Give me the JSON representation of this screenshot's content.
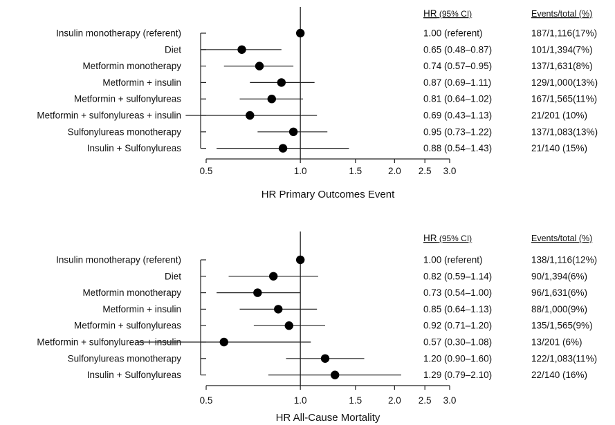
{
  "chart_data": [
    {
      "type": "forest",
      "xlabel": "HR Primary Outcomes Event",
      "x_scale": "log",
      "xlim": [
        0.5,
        3.0
      ],
      "x_ticks": [
        "0.5",
        "1.0",
        "1.5",
        "2.0",
        "2.5",
        "3.0"
      ],
      "x_tick_values": [
        0.5,
        1.0,
        1.5,
        2.0,
        2.5,
        3.0
      ],
      "reference_line": 1.0,
      "col_hr_header": "HR",
      "col_ci_header": "(95% CI)",
      "col_events_header": "Events/total (%)",
      "rows": [
        {
          "label": "Insulin monotherapy (referent)",
          "hr": 1.0,
          "lo": 1.0,
          "hi": 1.0,
          "hr_text": "1.00 (referent)",
          "events_text": "187/1,116(17%)"
        },
        {
          "label": "Diet",
          "hr": 0.65,
          "lo": 0.48,
          "hi": 0.87,
          "hr_text": "0.65 (0.48–0.87)",
          "events_text": "101/1,394(7%)"
        },
        {
          "label": "Metformin monotherapy",
          "hr": 0.74,
          "lo": 0.57,
          "hi": 0.95,
          "hr_text": "0.74 (0.57–0.95)",
          "events_text": "137/1,631(8%)"
        },
        {
          "label": "Metformin + insulin",
          "hr": 0.87,
          "lo": 0.69,
          "hi": 1.11,
          "hr_text": "0.87 (0.69–1.11)",
          "events_text": "129/1,000(13%)"
        },
        {
          "label": "Metformin + sulfonylureas",
          "hr": 0.81,
          "lo": 0.64,
          "hi": 1.02,
          "hr_text": "0.81 (0.64–1.02)",
          "events_text": "167/1,565(11%)"
        },
        {
          "label": "Metformin + sulfonylureas + insulin",
          "hr": 0.69,
          "lo": 0.43,
          "hi": 1.13,
          "hr_text": "0.69 (0.43–1.13)",
          "events_text": "21/201 (10%)"
        },
        {
          "label": "Sulfonylureas  monotherapy",
          "hr": 0.95,
          "lo": 0.73,
          "hi": 1.22,
          "hr_text": "0.95 (0.73–1.22)",
          "events_text": "137/1,083(13%)"
        },
        {
          "label": "Insulin + Sulfonylureas",
          "hr": 0.88,
          "lo": 0.54,
          "hi": 1.43,
          "hr_text": "0.88 (0.54–1.43)",
          "events_text": "21/140 (15%)"
        }
      ]
    },
    {
      "type": "forest",
      "xlabel": "HR All-Cause Mortality",
      "x_scale": "log",
      "xlim": [
        0.5,
        3.0
      ],
      "x_ticks": [
        "0.5",
        "1.0",
        "1.5",
        "2.0",
        "2.5",
        "3.0"
      ],
      "x_tick_values": [
        0.5,
        1.0,
        1.5,
        2.0,
        2.5,
        3.0
      ],
      "reference_line": 1.0,
      "col_hr_header": "HR",
      "col_ci_header": "(95% CI)",
      "col_events_header": "Events/total (%)",
      "rows": [
        {
          "label": "Insulin monotherapy (referent)",
          "hr": 1.0,
          "lo": 1.0,
          "hi": 1.0,
          "hr_text": "1.00 (referent)",
          "events_text": "138/1,116(12%)"
        },
        {
          "label": "Diet",
          "hr": 0.82,
          "lo": 0.59,
          "hi": 1.14,
          "hr_text": "0.82 (0.59–1.14)",
          "events_text": "90/1,394(6%)"
        },
        {
          "label": "Metformin monotherapy",
          "hr": 0.73,
          "lo": 0.54,
          "hi": 1.0,
          "hr_text": "0.73 (0.54–1.00)",
          "events_text": "96/1,631(6%)"
        },
        {
          "label": "Metformin + insulin",
          "hr": 0.85,
          "lo": 0.64,
          "hi": 1.13,
          "hr_text": "0.85 (0.64–1.13)",
          "events_text": "88/1,000(9%)"
        },
        {
          "label": "Metformin + sulfonylureas",
          "hr": 0.92,
          "lo": 0.71,
          "hi": 1.2,
          "hr_text": "0.92 (0.71–1.20)",
          "events_text": "135/1,565(9%)"
        },
        {
          "label": "Metformin + sulfonylureas + insulin",
          "hr": 0.57,
          "lo": 0.3,
          "hi": 1.08,
          "hr_text": "0.57 (0.30–1.08)",
          "events_text": "13/201 (6%)"
        },
        {
          "label": "Sulfonylureas  monotherapy",
          "hr": 1.2,
          "lo": 0.9,
          "hi": 1.6,
          "hr_text": "1.20 (0.90–1.60)",
          "events_text": "122/1,083(11%)"
        },
        {
          "label": "Insulin + Sulfonylureas",
          "hr": 1.29,
          "lo": 0.79,
          "hi": 2.1,
          "hr_text": "1.29 (0.79–2.10)",
          "events_text": "22/140 (16%)"
        }
      ]
    }
  ]
}
